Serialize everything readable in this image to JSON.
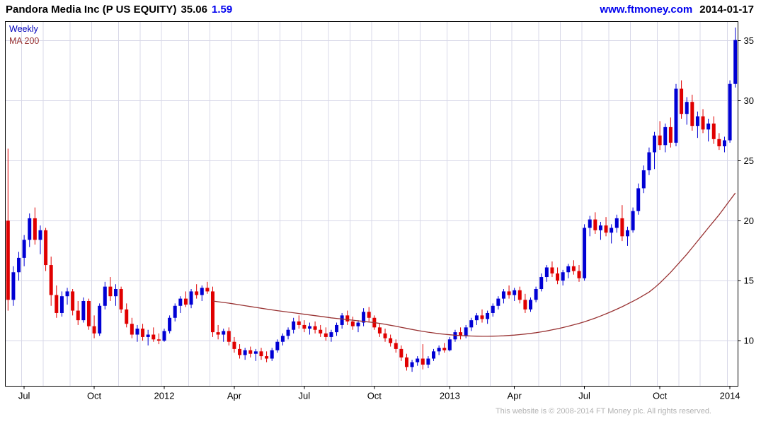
{
  "header": {
    "title": "Pandora Media Inc (P US EQUITY)",
    "last_price": "35.06",
    "change": "1.59",
    "site": "www.ftmoney.com",
    "date": "2014-01-17"
  },
  "legend": {
    "interval": "Weekly",
    "ma_label": "MA 200"
  },
  "footer": {
    "copyright": "This website is © 2008-2014 FT Money plc. All rights reserved."
  },
  "colors": {
    "up": "#0000d4",
    "down": "#e00000",
    "ma": "#993333",
    "grid": "#d8d8e8",
    "frame": "#000000",
    "link": "#0000ee"
  },
  "chart_data": {
    "type": "candlestick",
    "title": "Pandora Media Inc (P US EQUITY)",
    "interval": "Weekly",
    "overlay": "MA 200",
    "ylim": [
      6.2,
      36.6
    ],
    "yticks": [
      10,
      15,
      20,
      25,
      30,
      35
    ],
    "xticks": [
      {
        "label": "Jul",
        "index": 3
      },
      {
        "label": "Oct",
        "index": 16
      },
      {
        "label": "2012",
        "index": 29
      },
      {
        "label": "Apr",
        "index": 42
      },
      {
        "label": "Jul",
        "index": 55
      },
      {
        "label": "Oct",
        "index": 68
      },
      {
        "label": "2013",
        "index": 82
      },
      {
        "label": "Apr",
        "index": 94
      },
      {
        "label": "Jul",
        "index": 107
      },
      {
        "label": "Oct",
        "index": 121
      },
      {
        "label": "2014",
        "index": 134
      }
    ],
    "month_grid_indices": [
      3,
      7,
      12,
      16,
      21,
      25,
      29,
      34,
      38,
      42,
      47,
      51,
      55,
      60,
      64,
      68,
      73,
      77,
      82,
      86,
      90,
      94,
      99,
      103,
      107,
      112,
      116,
      121,
      125,
      129,
      134
    ],
    "candles": [
      [
        20.0,
        26.0,
        12.5,
        13.4
      ],
      [
        13.4,
        16.2,
        12.9,
        15.7
      ],
      [
        15.7,
        17.4,
        15.0,
        16.9
      ],
      [
        16.9,
        18.8,
        16.2,
        18.4
      ],
      [
        18.4,
        20.6,
        17.8,
        20.2
      ],
      [
        20.2,
        21.1,
        18.0,
        18.4
      ],
      [
        18.4,
        19.6,
        17.2,
        19.2
      ],
      [
        19.2,
        19.4,
        15.8,
        16.3
      ],
      [
        16.3,
        17.0,
        12.9,
        13.8
      ],
      [
        13.8,
        14.6,
        11.9,
        12.3
      ],
      [
        12.3,
        14.1,
        12.0,
        13.7
      ],
      [
        13.7,
        14.4,
        13.0,
        14.1
      ],
      [
        14.1,
        14.3,
        12.1,
        12.5
      ],
      [
        12.5,
        13.3,
        11.3,
        11.7
      ],
      [
        11.7,
        13.6,
        11.5,
        13.3
      ],
      [
        13.3,
        13.5,
        10.9,
        11.2
      ],
      [
        11.2,
        12.1,
        10.2,
        10.6
      ],
      [
        10.6,
        13.1,
        10.4,
        12.9
      ],
      [
        12.9,
        14.9,
        12.6,
        14.5
      ],
      [
        14.5,
        15.3,
        13.3,
        13.7
      ],
      [
        13.7,
        14.7,
        12.9,
        14.3
      ],
      [
        14.3,
        14.5,
        12.3,
        12.6
      ],
      [
        12.6,
        13.1,
        11.1,
        11.4
      ],
      [
        11.4,
        11.9,
        10.2,
        10.5
      ],
      [
        10.5,
        11.3,
        9.9,
        11.0
      ],
      [
        11.0,
        11.4,
        10.0,
        10.3
      ],
      [
        10.3,
        10.9,
        9.6,
        10.5
      ],
      [
        10.5,
        11.1,
        9.9,
        10.1
      ],
      [
        10.1,
        10.6,
        9.7,
        10.0
      ],
      [
        10.0,
        11.0,
        9.9,
        10.8
      ],
      [
        10.8,
        12.1,
        10.6,
        11.9
      ],
      [
        11.9,
        13.1,
        11.6,
        12.9
      ],
      [
        12.9,
        13.7,
        12.3,
        13.5
      ],
      [
        13.5,
        14.1,
        12.8,
        13.0
      ],
      [
        13.0,
        14.3,
        12.7,
        14.1
      ],
      [
        14.1,
        14.7,
        13.5,
        13.8
      ],
      [
        13.8,
        14.6,
        13.3,
        14.4
      ],
      [
        14.4,
        14.9,
        13.9,
        14.1
      ],
      [
        14.1,
        14.5,
        10.3,
        10.7
      ],
      [
        10.7,
        11.3,
        10.1,
        10.5
      ],
      [
        10.5,
        11.0,
        9.9,
        10.8
      ],
      [
        10.8,
        11.1,
        9.6,
        9.9
      ],
      [
        9.9,
        10.3,
        9.0,
        9.3
      ],
      [
        9.3,
        9.7,
        8.5,
        8.8
      ],
      [
        8.8,
        9.4,
        8.4,
        9.2
      ],
      [
        9.2,
        9.5,
        8.6,
        8.9
      ],
      [
        8.9,
        9.3,
        8.3,
        9.1
      ],
      [
        9.1,
        9.4,
        8.4,
        8.7
      ],
      [
        8.7,
        9.1,
        8.2,
        8.5
      ],
      [
        8.5,
        9.4,
        8.3,
        9.2
      ],
      [
        9.2,
        10.1,
        9.0,
        9.9
      ],
      [
        9.9,
        10.6,
        9.6,
        10.4
      ],
      [
        10.4,
        11.1,
        10.1,
        10.9
      ],
      [
        10.9,
        11.9,
        10.6,
        11.6
      ],
      [
        11.6,
        12.1,
        11.0,
        11.3
      ],
      [
        11.3,
        11.7,
        10.7,
        11.0
      ],
      [
        11.0,
        11.5,
        10.5,
        11.2
      ],
      [
        11.2,
        11.6,
        10.6,
        10.9
      ],
      [
        10.9,
        11.3,
        10.3,
        10.6
      ],
      [
        10.6,
        11.1,
        10.0,
        10.3
      ],
      [
        10.3,
        10.9,
        9.9,
        10.7
      ],
      [
        10.7,
        11.5,
        10.4,
        11.3
      ],
      [
        11.3,
        12.3,
        11.0,
        12.1
      ],
      [
        12.1,
        12.5,
        11.3,
        11.6
      ],
      [
        11.6,
        12.0,
        10.9,
        11.2
      ],
      [
        11.2,
        11.7,
        10.7,
        11.5
      ],
      [
        11.5,
        12.7,
        11.2,
        12.4
      ],
      [
        12.4,
        12.8,
        11.6,
        11.9
      ],
      [
        11.9,
        12.1,
        10.9,
        11.1
      ],
      [
        11.1,
        11.4,
        10.3,
        10.6
      ],
      [
        10.6,
        11.0,
        9.9,
        10.2
      ],
      [
        10.2,
        10.5,
        9.5,
        9.8
      ],
      [
        9.8,
        10.1,
        9.0,
        9.3
      ],
      [
        9.3,
        9.6,
        8.3,
        8.6
      ],
      [
        8.6,
        8.9,
        7.5,
        7.8
      ],
      [
        7.8,
        8.4,
        7.4,
        8.2
      ],
      [
        8.2,
        8.7,
        7.9,
        8.5
      ],
      [
        8.5,
        9.7,
        7.6,
        8.0
      ],
      [
        8.0,
        8.7,
        7.7,
        8.5
      ],
      [
        8.5,
        9.3,
        8.3,
        9.1
      ],
      [
        9.1,
        9.6,
        8.8,
        9.4
      ],
      [
        9.4,
        9.8,
        9.0,
        9.2
      ],
      [
        9.2,
        10.3,
        9.1,
        10.1
      ],
      [
        10.1,
        10.9,
        9.9,
        10.7
      ],
      [
        10.7,
        11.1,
        10.1,
        10.4
      ],
      [
        10.4,
        11.3,
        10.2,
        11.1
      ],
      [
        11.1,
        11.9,
        10.8,
        11.7
      ],
      [
        11.7,
        12.3,
        11.3,
        12.1
      ],
      [
        12.1,
        12.6,
        11.5,
        11.8
      ],
      [
        11.8,
        12.5,
        11.4,
        12.3
      ],
      [
        12.3,
        13.1,
        12.0,
        12.9
      ],
      [
        12.9,
        13.7,
        12.6,
        13.5
      ],
      [
        13.5,
        14.3,
        13.1,
        14.1
      ],
      [
        14.1,
        14.6,
        13.5,
        13.8
      ],
      [
        13.8,
        14.4,
        13.3,
        14.2
      ],
      [
        14.2,
        14.5,
        13.1,
        13.4
      ],
      [
        13.4,
        13.9,
        12.3,
        12.6
      ],
      [
        12.6,
        13.6,
        12.4,
        13.4
      ],
      [
        13.4,
        14.5,
        13.2,
        14.3
      ],
      [
        14.3,
        15.6,
        14.1,
        15.3
      ],
      [
        15.3,
        16.3,
        14.9,
        16.1
      ],
      [
        16.1,
        16.6,
        15.3,
        15.6
      ],
      [
        15.6,
        16.1,
        14.7,
        15.0
      ],
      [
        15.0,
        15.9,
        14.6,
        15.7
      ],
      [
        15.7,
        16.4,
        15.2,
        16.2
      ],
      [
        16.2,
        16.7,
        15.5,
        15.8
      ],
      [
        15.8,
        16.3,
        14.9,
        15.2
      ],
      [
        15.2,
        19.7,
        15.0,
        19.4
      ],
      [
        19.4,
        20.4,
        18.7,
        20.1
      ],
      [
        20.1,
        20.7,
        18.9,
        19.2
      ],
      [
        19.2,
        19.9,
        18.4,
        19.6
      ],
      [
        19.6,
        20.3,
        18.7,
        19.0
      ],
      [
        19.0,
        19.7,
        18.1,
        19.4
      ],
      [
        19.4,
        20.5,
        19.0,
        20.2
      ],
      [
        20.2,
        21.3,
        18.3,
        18.7
      ],
      [
        18.7,
        19.5,
        17.9,
        19.2
      ],
      [
        19.2,
        21.1,
        19.0,
        20.8
      ],
      [
        20.8,
        23.1,
        20.5,
        22.7
      ],
      [
        22.7,
        24.6,
        22.3,
        24.2
      ],
      [
        24.2,
        26.1,
        23.8,
        25.7
      ],
      [
        25.7,
        27.4,
        24.3,
        27.1
      ],
      [
        27.1,
        28.3,
        25.9,
        26.3
      ],
      [
        26.3,
        28.1,
        25.7,
        27.8
      ],
      [
        27.8,
        28.6,
        26.1,
        26.5
      ],
      [
        26.5,
        31.4,
        26.2,
        31.0
      ],
      [
        31.0,
        31.7,
        28.5,
        28.9
      ],
      [
        28.9,
        30.3,
        28.0,
        29.9
      ],
      [
        29.9,
        30.5,
        27.5,
        27.9
      ],
      [
        27.9,
        29.1,
        26.9,
        28.7
      ],
      [
        28.7,
        29.3,
        27.3,
        27.6
      ],
      [
        27.6,
        28.5,
        26.6,
        28.1
      ],
      [
        28.1,
        28.7,
        26.4,
        26.8
      ],
      [
        26.8,
        27.3,
        25.9,
        26.2
      ],
      [
        26.2,
        27.0,
        25.7,
        26.7
      ],
      [
        26.7,
        31.7,
        26.5,
        31.4
      ],
      [
        31.4,
        36.1,
        31.1,
        35.06
      ]
    ],
    "ma200": {
      "start_index": 38,
      "values": [
        13.3,
        13.24,
        13.18,
        13.12,
        13.05,
        12.98,
        12.91,
        12.84,
        12.77,
        12.7,
        12.63,
        12.56,
        12.5,
        12.44,
        12.38,
        12.32,
        12.26,
        12.2,
        12.14,
        12.08,
        12.02,
        11.96,
        11.9,
        11.85,
        11.8,
        11.75,
        11.7,
        11.65,
        11.6,
        11.55,
        11.5,
        11.43,
        11.36,
        11.28,
        11.2,
        11.11,
        11.02,
        10.93,
        10.85,
        10.77,
        10.7,
        10.64,
        10.58,
        10.53,
        10.49,
        10.45,
        10.42,
        10.4,
        10.38,
        10.37,
        10.36,
        10.36,
        10.37,
        10.38,
        10.4,
        10.43,
        10.46,
        10.5,
        10.55,
        10.6,
        10.66,
        10.73,
        10.81,
        10.9,
        10.99,
        11.09,
        11.2,
        11.32,
        11.44,
        11.57,
        11.72,
        11.88,
        12.05,
        12.23,
        12.42,
        12.62,
        12.83,
        13.05,
        13.28,
        13.52,
        13.78,
        14.05,
        14.4,
        14.8,
        15.25,
        15.7,
        16.2,
        16.7,
        17.2,
        17.75,
        18.3,
        18.85,
        19.4,
        19.95,
        20.5,
        21.1,
        21.7,
        22.3
      ]
    }
  }
}
